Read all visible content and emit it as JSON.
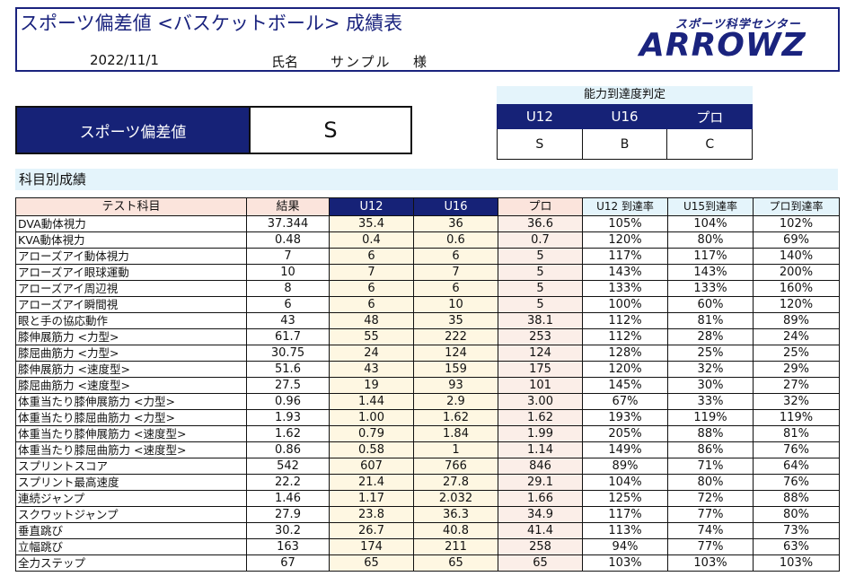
{
  "header": {
    "title": "スポーツ偏差値 <バスケットボール> 成績表",
    "date": "2022/11/1",
    "name_label": "氏名",
    "name_value": "サンプル",
    "honorific": "様",
    "logo_sub": "スポーツ科学センター",
    "logo_main": "ARROWZ"
  },
  "deviation": {
    "label": "スポーツ偏差値",
    "value": "S"
  },
  "ability": {
    "title": "能力到達度判定",
    "headers": [
      "U12",
      "U16",
      "プロ"
    ],
    "values": [
      "S",
      "B",
      "C"
    ]
  },
  "section_title": "科目別成績",
  "table": {
    "headers": [
      "テスト科目",
      "結果",
      "U12",
      "U16",
      "プロ",
      "U12 到達率",
      "U15到達率",
      "プロ到達率"
    ],
    "rows": [
      [
        "DVA動体視力",
        "37.344",
        "35.4",
        "36",
        "36.6",
        "105%",
        "104%",
        "102%"
      ],
      [
        "KVA動体視力",
        "0.48",
        "0.4",
        "0.6",
        "0.7",
        "120%",
        "80%",
        "69%"
      ],
      [
        "アローズアイ動体視力",
        "7",
        "6",
        "6",
        "5",
        "117%",
        "117%",
        "140%"
      ],
      [
        "アローズアイ眼球運動",
        "10",
        "7",
        "7",
        "5",
        "143%",
        "143%",
        "200%"
      ],
      [
        "アローズアイ周辺視",
        "8",
        "6",
        "6",
        "5",
        "133%",
        "133%",
        "160%"
      ],
      [
        "アローズアイ瞬間視",
        "6",
        "6",
        "10",
        "5",
        "100%",
        "60%",
        "120%"
      ],
      [
        "眼と手の協応動作",
        "43",
        "48",
        "35",
        "38.1",
        "112%",
        "81%",
        "89%"
      ],
      [
        "膝伸展筋力 <力型>",
        "61.7",
        "55",
        "222",
        "253",
        "112%",
        "28%",
        "24%"
      ],
      [
        "膝屈曲筋力 <力型>",
        "30.75",
        "24",
        "124",
        "124",
        "128%",
        "25%",
        "25%"
      ],
      [
        "膝伸展筋力 <速度型>",
        "51.6",
        "43",
        "159",
        "175",
        "120%",
        "32%",
        "29%"
      ],
      [
        "膝屈曲筋力 <速度型>",
        "27.5",
        "19",
        "93",
        "101",
        "145%",
        "30%",
        "27%"
      ],
      [
        "体重当たり膝伸展筋力 <力型>",
        "0.96",
        "1.44",
        "2.9",
        "3.00",
        "67%",
        "33%",
        "32%"
      ],
      [
        "体重当たり膝屈曲筋力 <力型>",
        "1.93",
        "1.00",
        "1.62",
        "1.62",
        "193%",
        "119%",
        "119%"
      ],
      [
        "体重当たり膝伸展筋力 <速度型>",
        "1.62",
        "0.79",
        "1.84",
        "1.99",
        "205%",
        "88%",
        "81%"
      ],
      [
        "体重当たり膝屈曲筋力 <速度型>",
        "0.86",
        "0.58",
        "1",
        "1.14",
        "149%",
        "86%",
        "76%"
      ],
      [
        "スプリントスコア",
        "542",
        "607",
        "766",
        "846",
        "89%",
        "71%",
        "64%"
      ],
      [
        "スプリント最高速度",
        "22.2",
        "21.4",
        "27.8",
        "29.1",
        "104%",
        "80%",
        "76%"
      ],
      [
        "連続ジャンプ",
        "1.46",
        "1.17",
        "2.032",
        "1.66",
        "125%",
        "72%",
        "88%"
      ],
      [
        "スクワットジャンプ",
        "27.9",
        "23.8",
        "36.3",
        "34.9",
        "117%",
        "77%",
        "80%"
      ],
      [
        "垂直跳び",
        "30.2",
        "26.7",
        "40.8",
        "41.4",
        "113%",
        "74%",
        "73%"
      ],
      [
        "立幅跳び",
        "163",
        "174",
        "211",
        "258",
        "94%",
        "77%",
        "63%"
      ],
      [
        "全力ステップ",
        "67",
        "65",
        "65",
        "65",
        "103%",
        "103%",
        "103%"
      ]
    ]
  }
}
